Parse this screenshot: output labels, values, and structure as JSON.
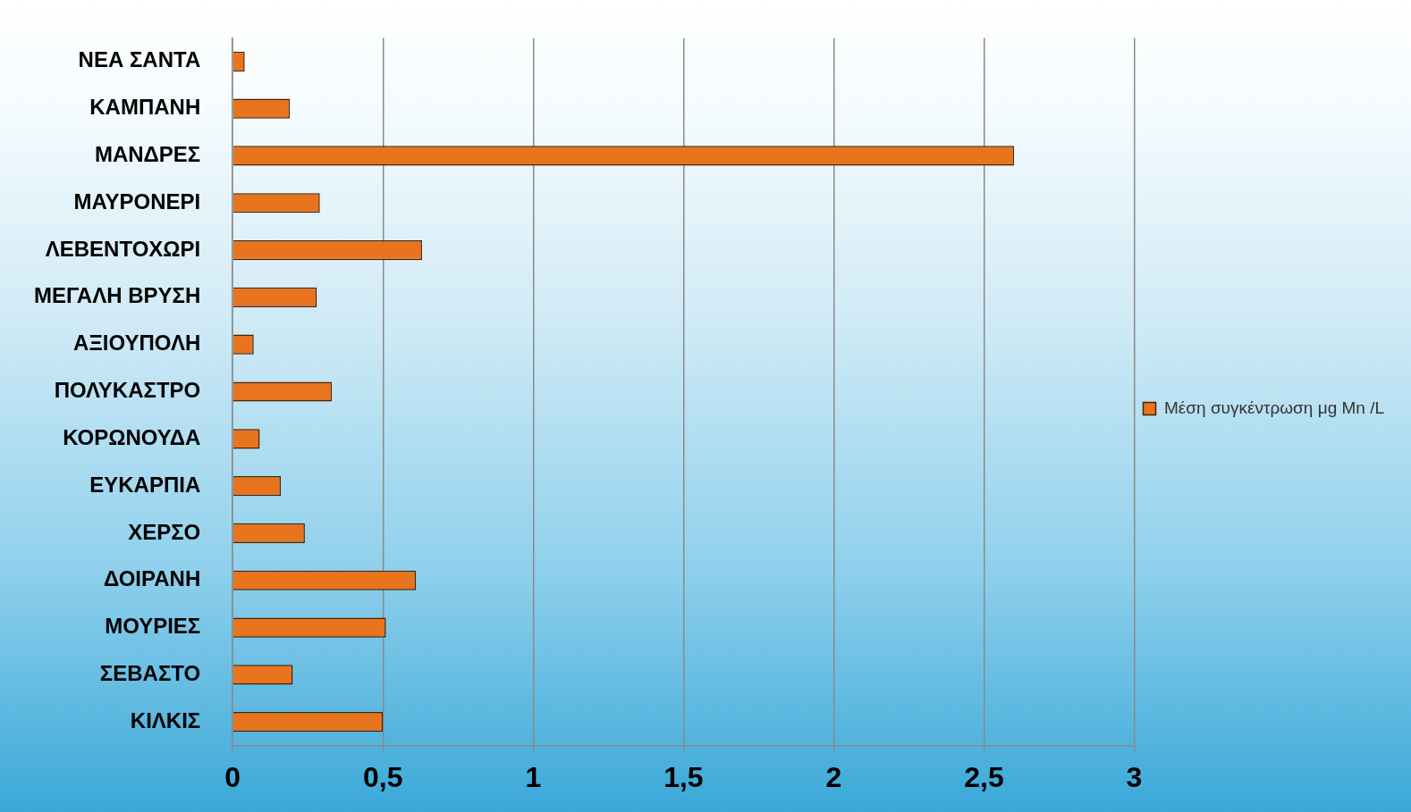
{
  "chart_data": {
    "type": "bar",
    "orientation": "horizontal",
    "categories": [
      "ΝΕΑ ΣΑΝΤΑ",
      "ΚΑΜΠΑΝΗ",
      "ΜΑΝΔΡΕΣ",
      "ΜΑΥΡΟΝΕΡΙ",
      "ΛΕΒΕΝΤΟΧΩΡΙ",
      "ΜΕΓΑΛΗ ΒΡΥΣΗ",
      "ΑΞΙΟΥΠΟΛΗ",
      "ΠΟΛΥΚΑΣΤΡΟ",
      "ΚΟΡΩΝΟΥΔΑ",
      "ΕΥΚΑΡΠΙΑ",
      "ΧΕΡΣΟ",
      "ΔΟΙΡΑΝΗ",
      "ΜΟΥΡΙΕΣ",
      "ΣΕΒΑΣΤΟ",
      "ΚΙΛΚΙΣ"
    ],
    "series": [
      {
        "name": "Μέση συγκέντρωση μg Mn /L",
        "color": "#e8741e",
        "values": [
          0.04,
          0.19,
          2.6,
          0.29,
          0.63,
          0.28,
          0.07,
          0.33,
          0.09,
          0.16,
          0.24,
          0.61,
          0.51,
          0.2,
          0.5
        ]
      }
    ],
    "xlim": [
      0,
      3
    ],
    "xticks": [
      0,
      {
        "value": 0.5,
        "label": "0,5"
      },
      1,
      {
        "value": 1.5,
        "label": "1,5"
      },
      2,
      {
        "value": 2.5,
        "label": "2,5"
      },
      3
    ],
    "grid": true,
    "legend": "right"
  }
}
